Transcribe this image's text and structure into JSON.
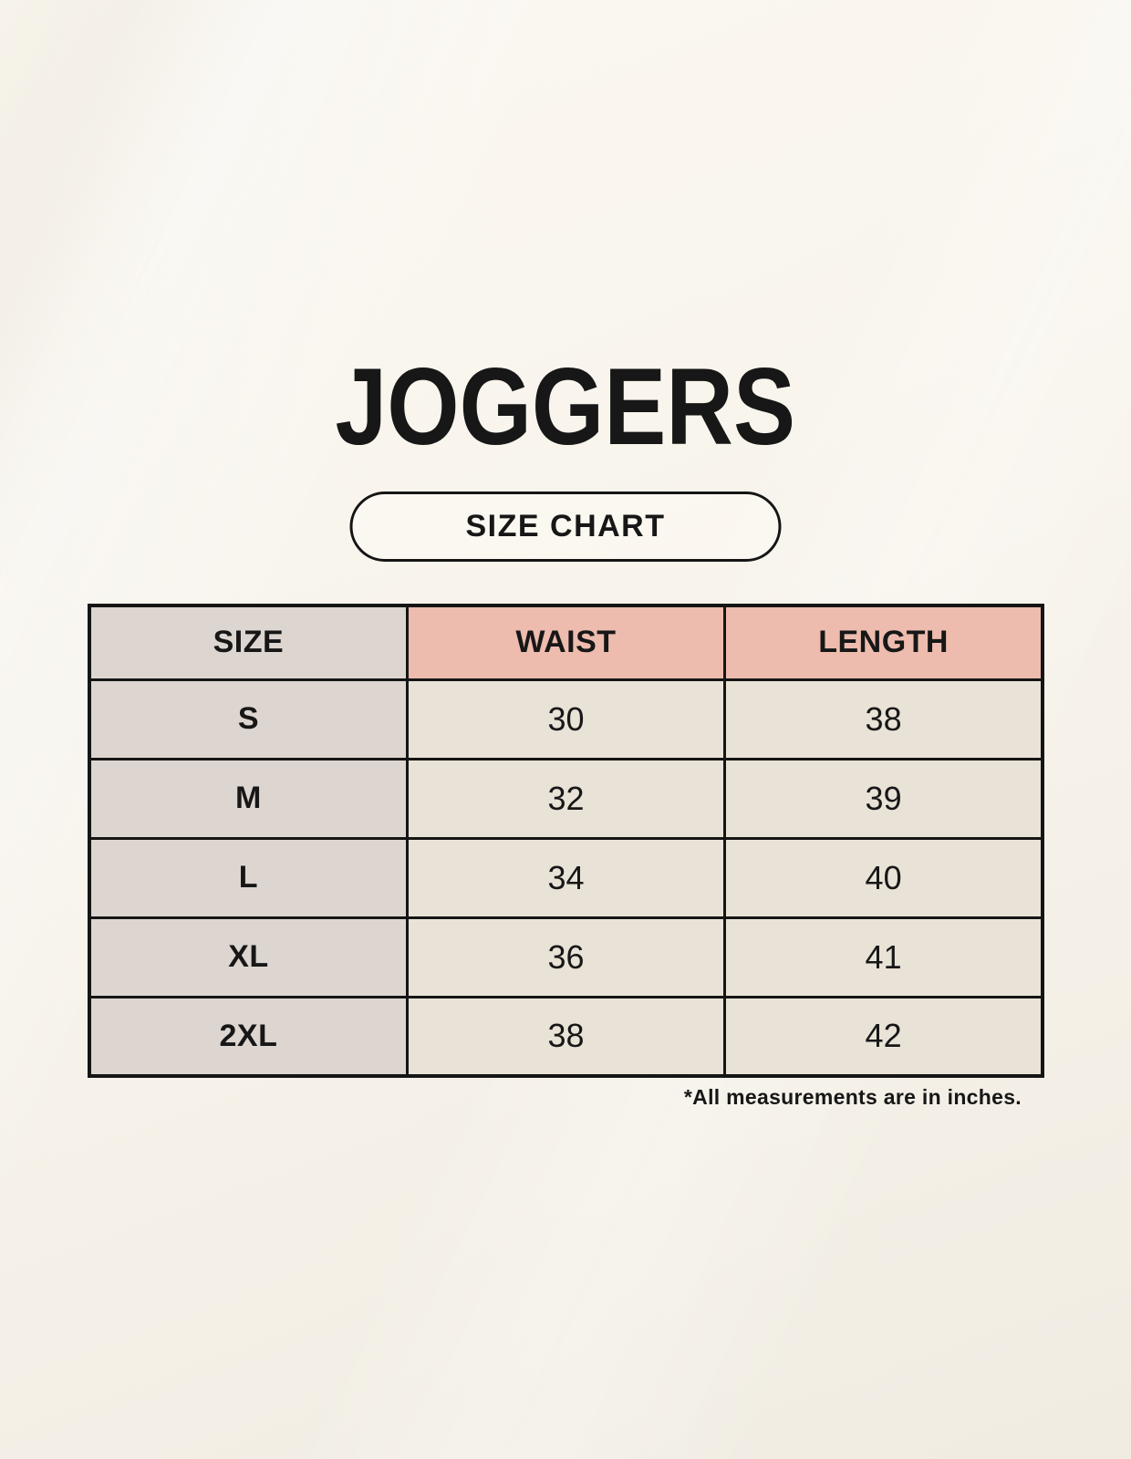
{
  "title": "JOGGERS",
  "badge": {
    "label": "SIZE CHART"
  },
  "table": {
    "columns": [
      "SIZE",
      "WAIST",
      "LENGTH"
    ],
    "rows": [
      {
        "size": "S",
        "waist": "30",
        "length": "38"
      },
      {
        "size": "M",
        "waist": "32",
        "length": "39"
      },
      {
        "size": "L",
        "waist": "34",
        "length": "40"
      },
      {
        "size": "XL",
        "waist": "36",
        "length": "41"
      },
      {
        "size": "2XL",
        "waist": "38",
        "length": "42"
      }
    ]
  },
  "footnote": "*All measurements are in inches.",
  "colors": {
    "page_bg": "#f8f4ec",
    "header_accent": "#edbcae",
    "label_column": "#ddd6d0",
    "value_cell": "#e9e2d7",
    "border": "#151515",
    "text": "#171717"
  }
}
